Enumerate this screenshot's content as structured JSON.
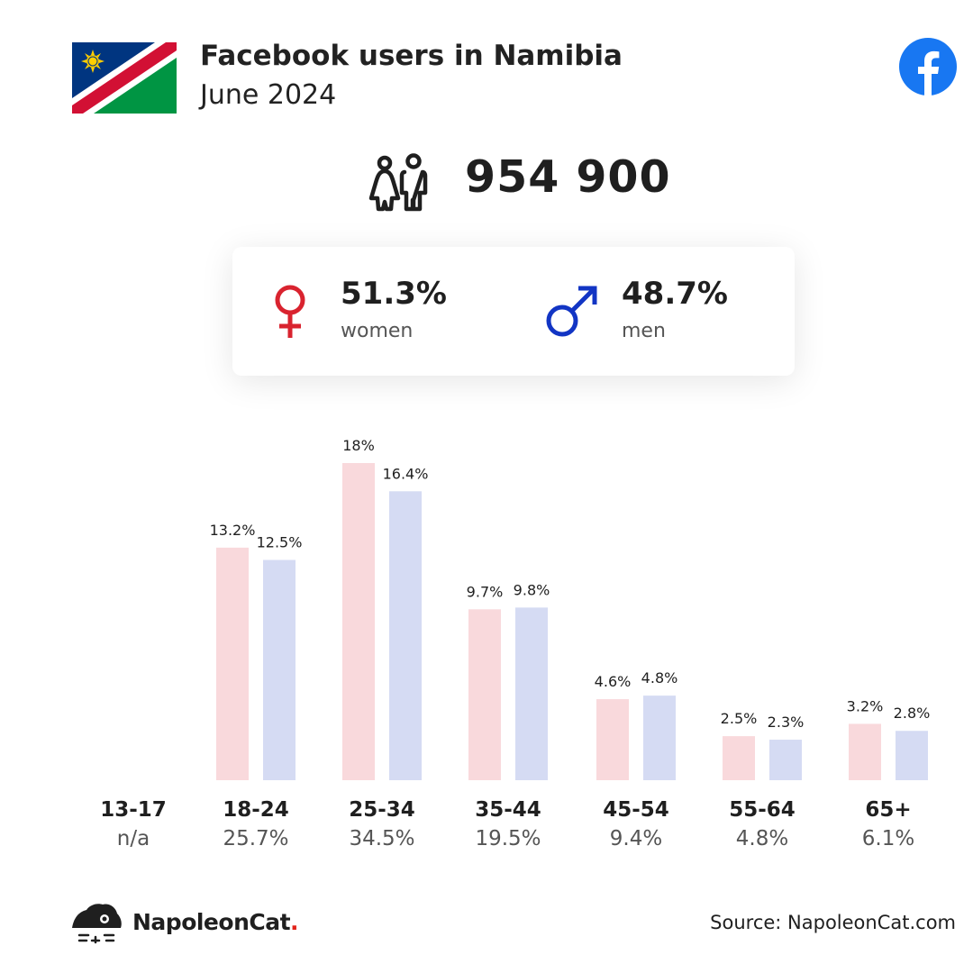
{
  "header": {
    "title": "Facebook users in Namibia",
    "subtitle": "June 2024",
    "flag_icon": "namibia-flag-icon",
    "brand_icon": "facebook-icon"
  },
  "total": {
    "icon": "users-icon",
    "value": "954 900"
  },
  "gender": {
    "women": {
      "pct": "51.3%",
      "label": "women",
      "color": "#d9232f"
    },
    "men": {
      "pct": "48.7%",
      "label": "men",
      "color": "#1235c4"
    }
  },
  "chart_data": {
    "type": "bar",
    "categories": [
      "13-17",
      "18-24",
      "25-34",
      "35-44",
      "45-54",
      "55-64",
      "65+"
    ],
    "category_totals": [
      "n/a",
      "25.7%",
      "34.5%",
      "19.5%",
      "9.4%",
      "4.8%",
      "6.1%"
    ],
    "series": [
      {
        "values": [
          null,
          13.2,
          18,
          9.7,
          4.6,
          2.5,
          3.2
        ],
        "labels": [
          "",
          "13.2%",
          "18%",
          "9.7%",
          "4.6%",
          "2.5%",
          "3.2%"
        ],
        "color": "#f9d9dc"
      },
      {
        "values": [
          null,
          12.5,
          16.4,
          9.8,
          4.8,
          2.3,
          2.8
        ],
        "labels": [
          "",
          "12.5%",
          "16.4%",
          "9.8%",
          "4.8%",
          "2.3%",
          "2.8%"
        ],
        "color": "#d5dbf3"
      }
    ],
    "ylim": [
      0,
      18
    ]
  },
  "footer": {
    "brand_icon": "napoleoncat-logo-icon",
    "brand_name": "NapoleonCat",
    "brand_dot": ".",
    "source": "Source: NapoleonCat.com"
  }
}
